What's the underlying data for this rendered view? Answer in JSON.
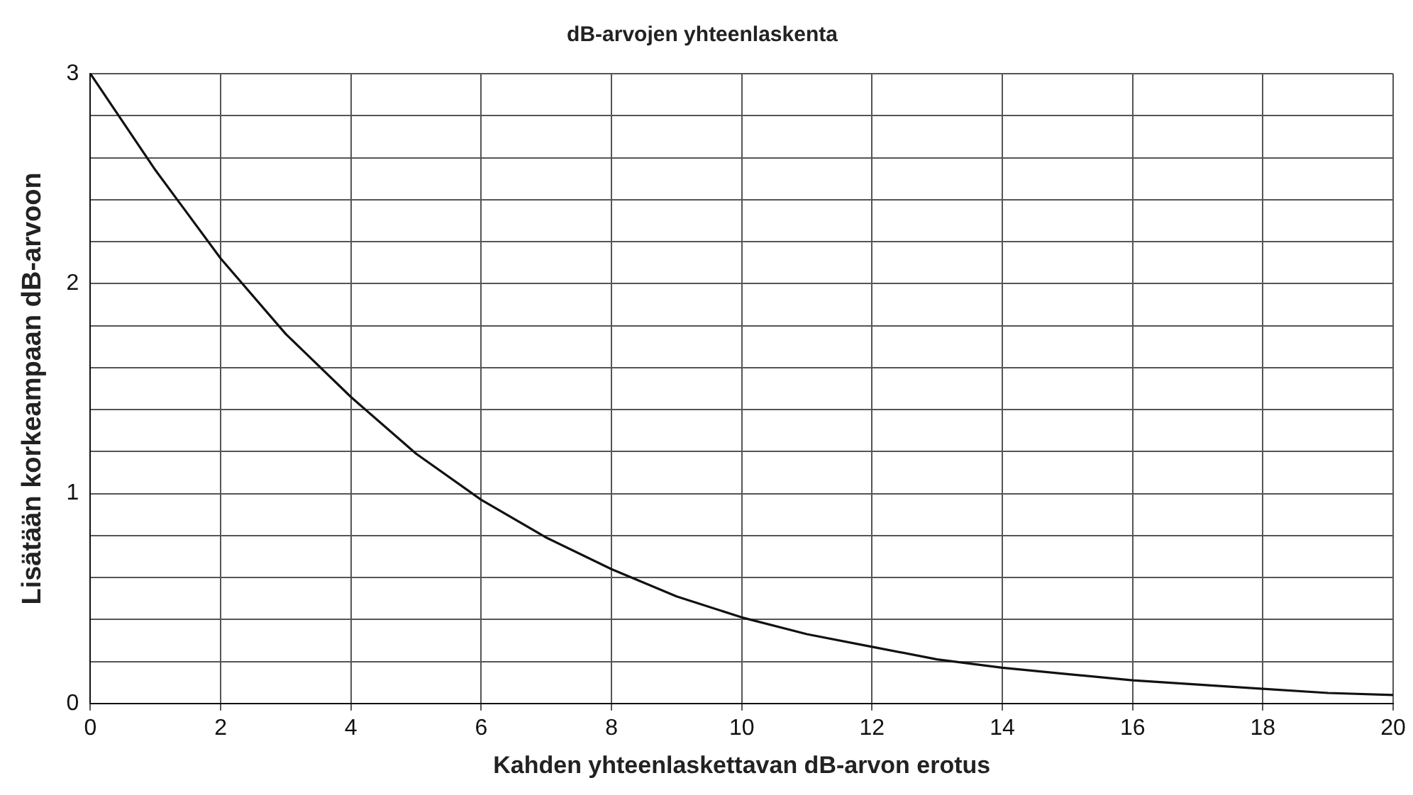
{
  "chart_data": {
    "type": "line",
    "title": "dB-arvojen yhteenlaskenta",
    "xlabel": "Kahden yhteenlaskettavan dB-arvon erotus",
    "ylabel": "Lisätään korkeampaan dB-arvoon",
    "x": [
      0,
      1,
      2,
      3,
      4,
      5,
      6,
      7,
      8,
      9,
      10,
      11,
      12,
      13,
      14,
      15,
      16,
      17,
      18,
      19,
      20
    ],
    "series": [
      {
        "color": "#111111",
        "values": [
          3,
          2.54,
          2.12,
          1.76,
          1.46,
          1.19,
          0.97,
          0.79,
          0.64,
          0.51,
          0.41,
          0.33,
          0.27,
          0.21,
          0.17,
          0.14,
          0.11,
          0.09,
          0.07,
          0.05,
          0.04
        ]
      }
    ],
    "xlim": [
      0,
      20
    ],
    "xticks": [
      0,
      2,
      4,
      6,
      8,
      10,
      12,
      14,
      16,
      18,
      20
    ],
    "ylim": [
      0,
      3
    ],
    "yticks": [
      0,
      {
        "value": 0.2,
        "label": null
      },
      {
        "value": 0.4,
        "label": null
      },
      {
        "value": 0.6,
        "label": null
      },
      {
        "value": 0.8,
        "label": null
      },
      1,
      {
        "value": 1.2,
        "label": null
      },
      {
        "value": 1.4,
        "label": null
      },
      {
        "value": 1.6,
        "label": null
      },
      {
        "value": 1.8,
        "label": null
      },
      2,
      {
        "value": 2.2,
        "label": null
      },
      {
        "value": 2.4,
        "label": null
      },
      {
        "value": 2.6,
        "label": null
      },
      {
        "value": 2.8,
        "label": null
      },
      3
    ],
    "grid": true,
    "legend": false,
    "marker": "none",
    "line_style": "solid"
  }
}
